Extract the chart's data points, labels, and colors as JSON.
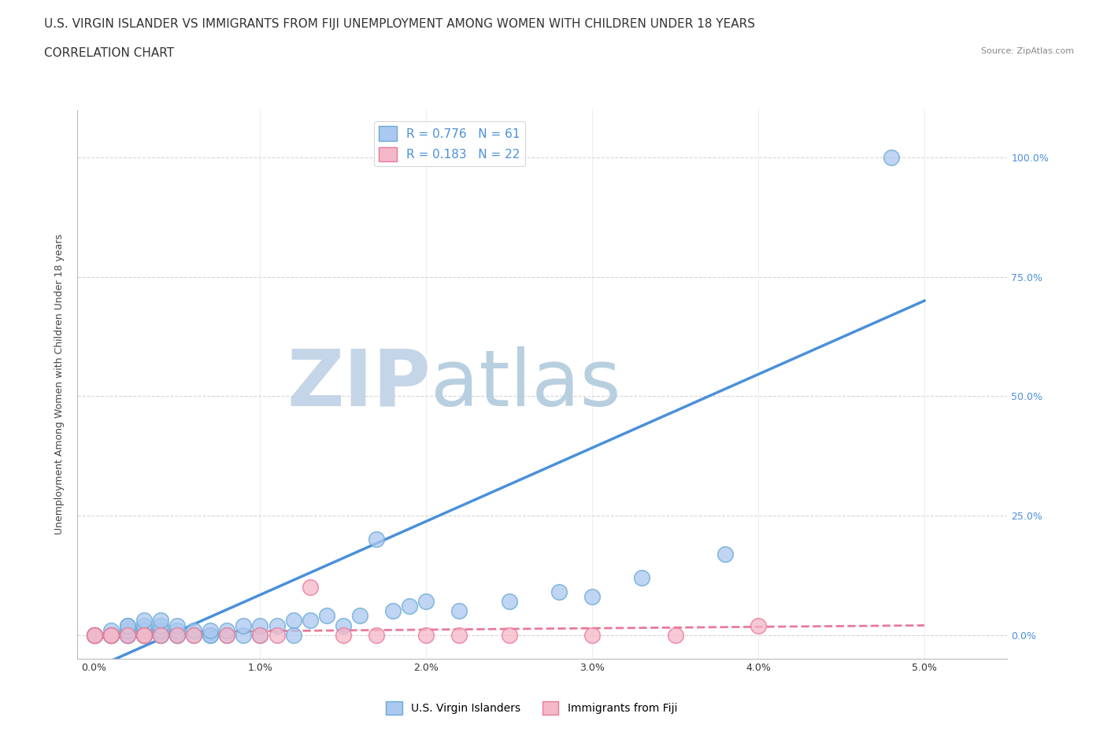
{
  "title": "U.S. VIRGIN ISLANDER VS IMMIGRANTS FROM FIJI UNEMPLOYMENT AMONG WOMEN WITH CHILDREN UNDER 18 YEARS",
  "subtitle": "CORRELATION CHART",
  "source": "Source: ZipAtlas.com",
  "xlabel_ticks": [
    "0.0%",
    "1.0%",
    "2.0%",
    "3.0%",
    "4.0%",
    "5.0%"
  ],
  "ylabel_ticks": [
    "0.0%",
    "25.0%",
    "50.0%",
    "75.0%",
    "100.0%"
  ],
  "xlim": [
    -0.001,
    0.055
  ],
  "ylim": [
    -0.05,
    1.1
  ],
  "group1_name": "U.S. Virgin Islanders",
  "group1_color": "#aac8f0",
  "group1_edge_color": "#6aaad4",
  "group1_line_color": "#4a90d9",
  "group1_R": 0.776,
  "group1_N": 61,
  "group2_name": "Immigrants from Fiji",
  "group2_color": "#f5b8c8",
  "group2_edge_color": "#e87a9a",
  "group2_line_color": "#e87a9a",
  "group2_R": 0.183,
  "group2_N": 22,
  "watermark_zip": "ZIP",
  "watermark_atlas": "atlas",
  "watermark_color_zip": "#d0dff0",
  "watermark_color_atlas": "#c8d8e8",
  "background_color": "#ffffff",
  "title_fontsize": 11,
  "subtitle_fontsize": 11,
  "axis_label_fontsize": 9,
  "legend_fontsize": 11,
  "group1_x": [
    0.0,
    0.0,
    0.0,
    0.0,
    0.001,
    0.001,
    0.001,
    0.001,
    0.001,
    0.001,
    0.002,
    0.002,
    0.002,
    0.002,
    0.002,
    0.002,
    0.003,
    0.003,
    0.003,
    0.003,
    0.003,
    0.003,
    0.003,
    0.004,
    0.004,
    0.004,
    0.004,
    0.004,
    0.005,
    0.005,
    0.005,
    0.005,
    0.006,
    0.006,
    0.007,
    0.007,
    0.007,
    0.008,
    0.008,
    0.009,
    0.009,
    0.01,
    0.01,
    0.011,
    0.012,
    0.012,
    0.013,
    0.014,
    0.015,
    0.016,
    0.017,
    0.018,
    0.019,
    0.02,
    0.022,
    0.025,
    0.028,
    0.03,
    0.033,
    0.038,
    0.048
  ],
  "group1_y": [
    0.0,
    0.0,
    0.0,
    0.0,
    0.0,
    0.0,
    0.0,
    0.0,
    0.0,
    0.01,
    0.0,
    0.0,
    0.0,
    0.01,
    0.02,
    0.02,
    0.0,
    0.0,
    0.0,
    0.01,
    0.01,
    0.02,
    0.03,
    0.0,
    0.0,
    0.01,
    0.02,
    0.03,
    0.0,
    0.0,
    0.01,
    0.02,
    0.0,
    0.01,
    0.0,
    0.0,
    0.01,
    0.0,
    0.01,
    0.0,
    0.02,
    0.0,
    0.02,
    0.02,
    0.0,
    0.03,
    0.03,
    0.04,
    0.02,
    0.04,
    0.2,
    0.05,
    0.06,
    0.07,
    0.05,
    0.07,
    0.09,
    0.08,
    0.12,
    0.17,
    1.0
  ],
  "group2_x": [
    0.0,
    0.0,
    0.001,
    0.001,
    0.002,
    0.003,
    0.003,
    0.004,
    0.005,
    0.006,
    0.008,
    0.01,
    0.011,
    0.013,
    0.015,
    0.017,
    0.02,
    0.022,
    0.025,
    0.03,
    0.035,
    0.04
  ],
  "group2_y": [
    0.0,
    0.0,
    0.0,
    0.0,
    0.0,
    0.0,
    0.0,
    0.0,
    0.0,
    0.0,
    0.0,
    0.0,
    0.0,
    0.1,
    0.0,
    0.0,
    0.0,
    0.0,
    0.0,
    0.0,
    0.0,
    0.02
  ],
  "line1_x0": 0.0,
  "line1_y0": -0.07,
  "line1_x1": 0.05,
  "line1_y1": 0.7,
  "line2_x0": 0.0,
  "line2_y0": 0.005,
  "line2_x1": 0.05,
  "line2_y1": 0.02
}
